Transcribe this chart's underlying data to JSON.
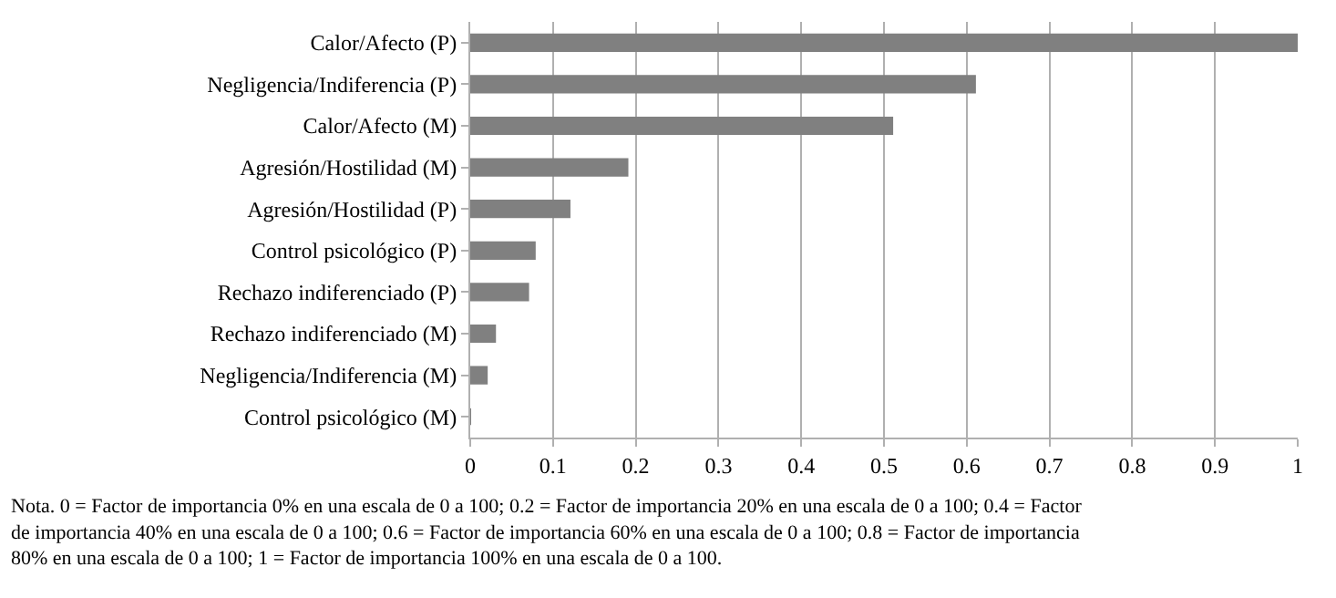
{
  "chart_data": {
    "type": "bar",
    "orientation": "horizontal",
    "categories": [
      "Calor/Afecto (P)",
      "Negligencia/Indiferencia (P)",
      "Calor/Afecto (M)",
      "Agresión/Hostilidad (M)",
      "Agresión/Hostilidad (P)",
      "Control psicológico (P)",
      "Rechazo indiferenciado (P)",
      "Rechazo indiferenciado (M)",
      "Negligencia/Indiferencia (M)",
      "Control psicológico (M)"
    ],
    "values": [
      1.0,
      0.61,
      0.51,
      0.19,
      0.12,
      0.078,
      0.07,
      0.03,
      0.02,
      0
    ],
    "color": "#808080",
    "xlim": [
      0,
      1
    ],
    "xticks": [
      0,
      0.1,
      0.2,
      0.3,
      0.4,
      0.5,
      0.6,
      0.7,
      0.8,
      0.9,
      1
    ],
    "grid": "x",
    "annotations": [
      "Nota. 0 = Factor de importancia 0% en una escala de 0 a 100; 0.2 = Factor de importancia 20% en una escala de 0 a 100; 0.4 = Factor de importancia 40% en una escala de 0 a 100; 0.6 = Factor de importancia 60% en una escala de 0 a 100; 0.8 = Factor de importancia 80% en una escala de 0 a 100; 1 = Factor de importancia 100% en una escala de 0 a 100."
    ]
  }
}
